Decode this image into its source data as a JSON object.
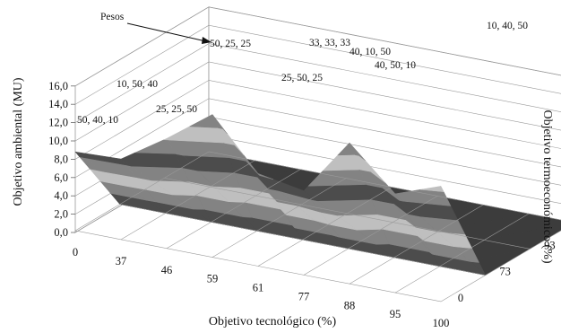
{
  "chart_data": {
    "type": "surface",
    "xlabel": "Objetivo tecnológico (%)",
    "ylabel": "Objetivo termoeconómico (%)",
    "zlabel": "Objetivo ambiental (MU)",
    "x_ticks": [
      "0",
      "37",
      "46",
      "59",
      "61",
      "77",
      "88",
      "95",
      "100"
    ],
    "y_ticks": [
      "0",
      "73",
      "93",
      "100"
    ],
    "z_ticks": [
      "0,0",
      "2,0",
      "4,0",
      "6,0",
      "8,0",
      "10,0",
      "12,0",
      "14,0",
      "16,0"
    ],
    "zlim": [
      0,
      16
    ],
    "weights_title": "Pesos",
    "weight_labels": [
      "50, 40, 10",
      "10, 50, 40",
      "25, 25, 50",
      "50, 25, 25",
      "25, 50, 25",
      "33, 33, 33",
      "40, 10, 50",
      "40, 50, 10",
      "10, 40, 50"
    ],
    "surface": [
      [
        8.8,
        9.0,
        12.2,
        15.8,
        10.3,
        9.4,
        15.6,
        11.0,
        12.8
      ],
      [
        0.2,
        0.2,
        0.2,
        0.2,
        0.2,
        0.2,
        0.2,
        0.2,
        0.2
      ],
      [
        0.2,
        0.2,
        0.2,
        0.2,
        0.2,
        0.2,
        0.2,
        0.2,
        0.2
      ],
      [
        0.2,
        0.2,
        0.2,
        0.2,
        0.2,
        0.2,
        0.2,
        0.2,
        0.2
      ]
    ],
    "grid": true
  },
  "colors": {
    "band_dark": "#505050",
    "band_mid": "#8a8a8a",
    "band_light": "#c9c9c9",
    "grid": "#999999"
  }
}
